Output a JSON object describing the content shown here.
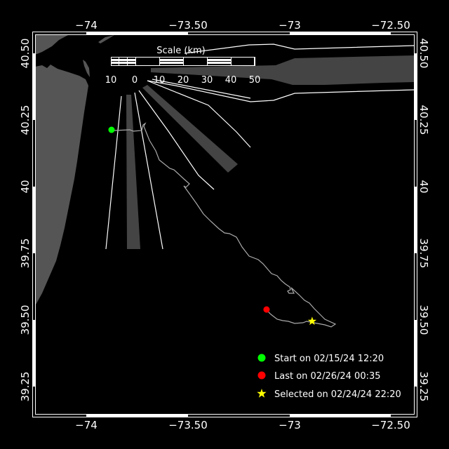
{
  "map": {
    "colors": {
      "background": "#000000",
      "land": "#555555",
      "shading": "#444444",
      "track": "#aaaaaa",
      "lines": "#ffffff",
      "start": "#00ff00",
      "last": "#ff0000",
      "selected": "#ffff00"
    },
    "lon_ticks": [
      {
        "value": -74,
        "label": "−74"
      },
      {
        "value": -73.5,
        "label": "−73.50"
      },
      {
        "value": -73,
        "label": "−73"
      },
      {
        "value": -72.5,
        "label": "−72.50"
      }
    ],
    "lat_ticks": [
      {
        "value": 40.5,
        "label": "40.50"
      },
      {
        "value": 40.25,
        "label": "40.25"
      },
      {
        "value": 40,
        "label": "40"
      },
      {
        "value": 39.75,
        "label": "39.75"
      },
      {
        "value": 39.5,
        "label": "39.50"
      },
      {
        "value": 39.25,
        "label": "39.25"
      }
    ],
    "scale_bar": {
      "title": "Scale (km)",
      "labels": [
        "10",
        "0",
        "10",
        "20",
        "30",
        "40",
        "50"
      ]
    },
    "markers": {
      "start": {
        "lon": -73.876,
        "lat": 40.213
      },
      "last": {
        "lon": -73.114,
        "lat": 39.539
      },
      "selected": {
        "lon": -72.89,
        "lat": 39.495
      }
    },
    "legend": [
      {
        "icon": "green-circle",
        "label": "Start on 02/15/24 12:20"
      },
      {
        "icon": "red-circle",
        "label": "Last on 02/26/24 00:35"
      },
      {
        "icon": "yellow-star",
        "label": "Selected on 02/24/24 22:20"
      }
    ]
  }
}
